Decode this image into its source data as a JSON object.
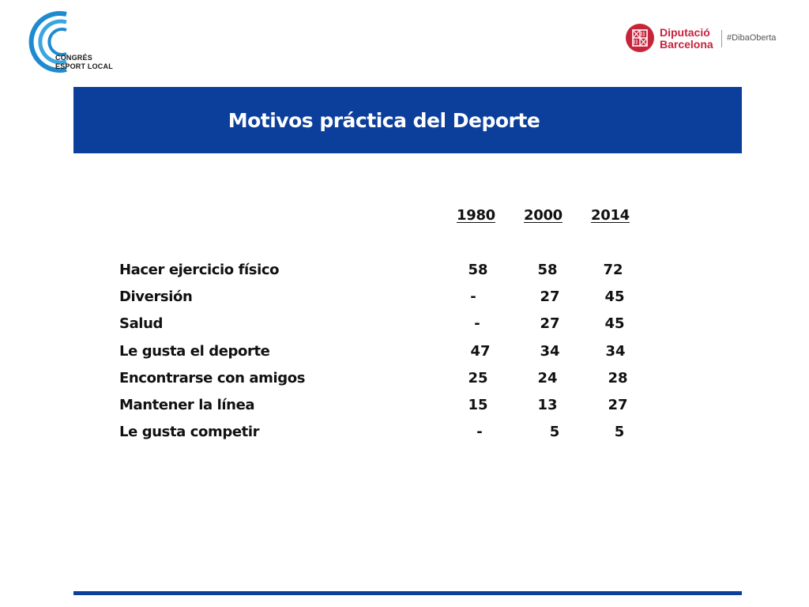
{
  "logos": {
    "congres": {
      "line1": "CONGRÉS",
      "line2": "ESPORT LOCAL",
      "color": "#1e8bd0"
    },
    "diputacio": {
      "line1": "Diputació",
      "line2": "Barcelona",
      "hashtag": "#DibaOberta",
      "color": "#c6243b"
    }
  },
  "title": "Motivos práctica del Deporte",
  "colors": {
    "banner": "#0b3f9b",
    "text": "#111111"
  },
  "table": {
    "years": [
      "1980",
      "2000",
      "2014"
    ],
    "rows": [
      {
        "label": "Hacer ejercicio físico",
        "values": [
          "58",
          "58",
          "72"
        ]
      },
      {
        "label": "Diversión",
        "values": [
          "-",
          "27",
          "45"
        ]
      },
      {
        "label": "Salud",
        "values": [
          "-",
          "27",
          "45"
        ]
      },
      {
        "label": "Le gusta el deporte",
        "values": [
          "47",
          "34",
          "34"
        ]
      },
      {
        "label": "Encontrarse con amigos",
        "values": [
          "25",
          "24",
          "28"
        ]
      },
      {
        "label": "Mantener la línea",
        "values": [
          "15",
          "13",
          "27"
        ]
      },
      {
        "label": "Le gusta competir",
        "values": [
          "-",
          "5",
          "5"
        ]
      }
    ]
  }
}
